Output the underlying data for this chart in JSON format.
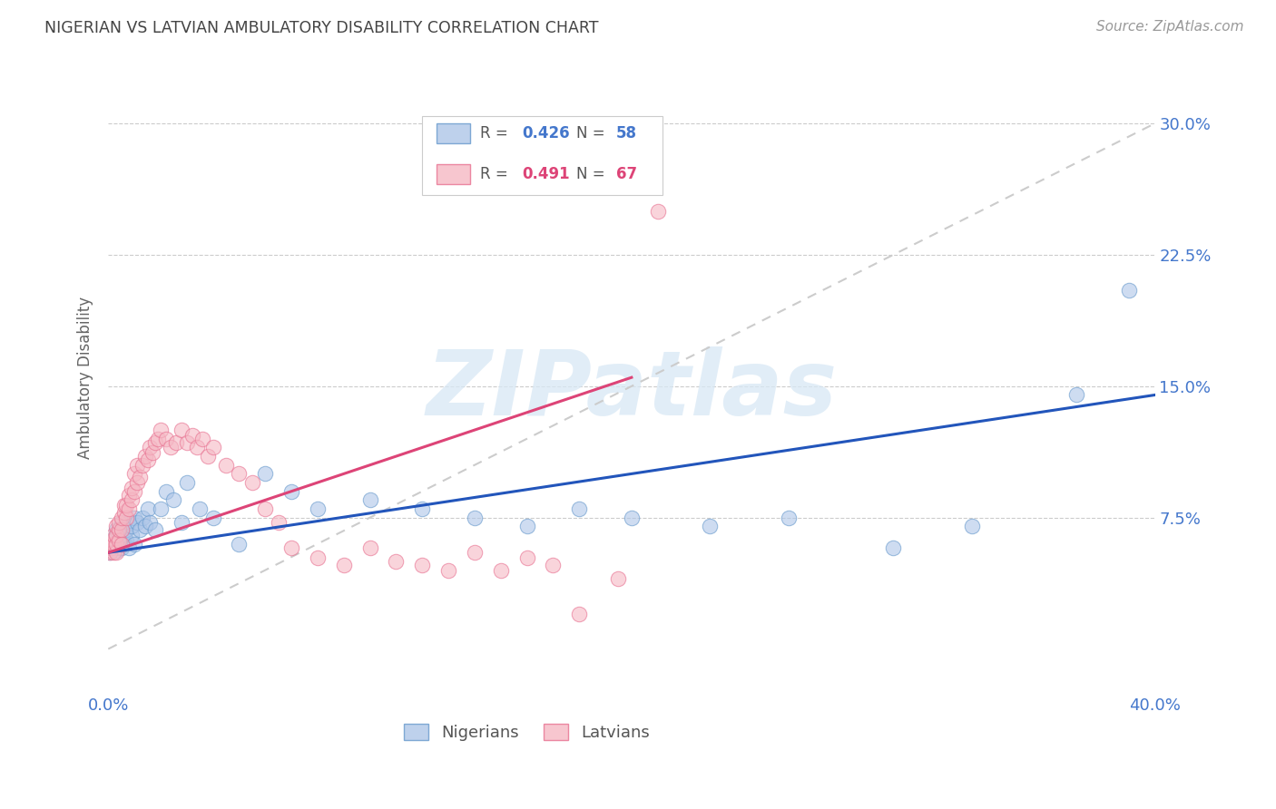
{
  "title": "NIGERIAN VS LATVIAN AMBULATORY DISABILITY CORRELATION CHART",
  "source": "Source: ZipAtlas.com",
  "ylabel": "Ambulatory Disability",
  "ytick_labels": [
    "7.5%",
    "15.0%",
    "22.5%",
    "30.0%"
  ],
  "ytick_values": [
    0.075,
    0.15,
    0.225,
    0.3
  ],
  "xlim": [
    0.0,
    0.4
  ],
  "ylim": [
    -0.025,
    0.335
  ],
  "background_color": "#ffffff",
  "grid_color": "#cccccc",
  "title_color": "#333333",
  "source_color": "#999999",
  "nigerian_color": "#aec6e8",
  "nigerian_edge": "#6699cc",
  "latvian_color": "#f5b8c4",
  "latvian_edge": "#e87090",
  "regression_line_nigerian": "#2255bb",
  "regression_line_latvian": "#dd4477",
  "diagonal_color": "#cccccc",
  "watermark_text": "ZIPatlas",
  "nigerian_x": [
    0.0005,
    0.001,
    0.0015,
    0.002,
    0.002,
    0.002,
    0.003,
    0.003,
    0.003,
    0.003,
    0.004,
    0.004,
    0.004,
    0.005,
    0.005,
    0.005,
    0.005,
    0.006,
    0.006,
    0.006,
    0.007,
    0.007,
    0.008,
    0.008,
    0.009,
    0.009,
    0.01,
    0.01,
    0.011,
    0.012,
    0.013,
    0.014,
    0.015,
    0.016,
    0.018,
    0.02,
    0.022,
    0.025,
    0.028,
    0.03,
    0.035,
    0.04,
    0.05,
    0.06,
    0.07,
    0.08,
    0.1,
    0.12,
    0.14,
    0.16,
    0.18,
    0.2,
    0.23,
    0.26,
    0.3,
    0.33,
    0.37,
    0.39
  ],
  "nigerian_y": [
    0.055,
    0.06,
    0.058,
    0.062,
    0.058,
    0.063,
    0.056,
    0.06,
    0.065,
    0.068,
    0.058,
    0.062,
    0.068,
    0.058,
    0.063,
    0.068,
    0.072,
    0.06,
    0.065,
    0.07,
    0.062,
    0.068,
    0.058,
    0.072,
    0.065,
    0.07,
    0.06,
    0.075,
    0.072,
    0.068,
    0.075,
    0.07,
    0.08,
    0.072,
    0.068,
    0.08,
    0.09,
    0.085,
    0.072,
    0.095,
    0.08,
    0.075,
    0.06,
    0.1,
    0.09,
    0.08,
    0.085,
    0.08,
    0.075,
    0.07,
    0.08,
    0.075,
    0.07,
    0.075,
    0.058,
    0.07,
    0.145,
    0.205
  ],
  "latvian_x": [
    0.0005,
    0.001,
    0.001,
    0.0015,
    0.002,
    0.002,
    0.002,
    0.003,
    0.003,
    0.003,
    0.003,
    0.004,
    0.004,
    0.004,
    0.005,
    0.005,
    0.005,
    0.006,
    0.006,
    0.007,
    0.007,
    0.008,
    0.008,
    0.009,
    0.009,
    0.01,
    0.01,
    0.011,
    0.011,
    0.012,
    0.013,
    0.014,
    0.015,
    0.016,
    0.017,
    0.018,
    0.019,
    0.02,
    0.022,
    0.024,
    0.026,
    0.028,
    0.03,
    0.032,
    0.034,
    0.036,
    0.038,
    0.04,
    0.045,
    0.05,
    0.055,
    0.06,
    0.065,
    0.07,
    0.08,
    0.09,
    0.1,
    0.11,
    0.12,
    0.13,
    0.14,
    0.15,
    0.16,
    0.17,
    0.18,
    0.195,
    0.21
  ],
  "latvian_y": [
    0.055,
    0.058,
    0.06,
    0.062,
    0.055,
    0.06,
    0.065,
    0.055,
    0.06,
    0.065,
    0.07,
    0.062,
    0.068,
    0.072,
    0.06,
    0.068,
    0.075,
    0.078,
    0.082,
    0.075,
    0.082,
    0.08,
    0.088,
    0.085,
    0.092,
    0.09,
    0.1,
    0.095,
    0.105,
    0.098,
    0.105,
    0.11,
    0.108,
    0.115,
    0.112,
    0.118,
    0.12,
    0.125,
    0.12,
    0.115,
    0.118,
    0.125,
    0.118,
    0.122,
    0.115,
    0.12,
    0.11,
    0.115,
    0.105,
    0.1,
    0.095,
    0.08,
    0.072,
    0.058,
    0.052,
    0.048,
    0.058,
    0.05,
    0.048,
    0.045,
    0.055,
    0.045,
    0.052,
    0.048,
    0.02,
    0.04,
    0.25
  ]
}
